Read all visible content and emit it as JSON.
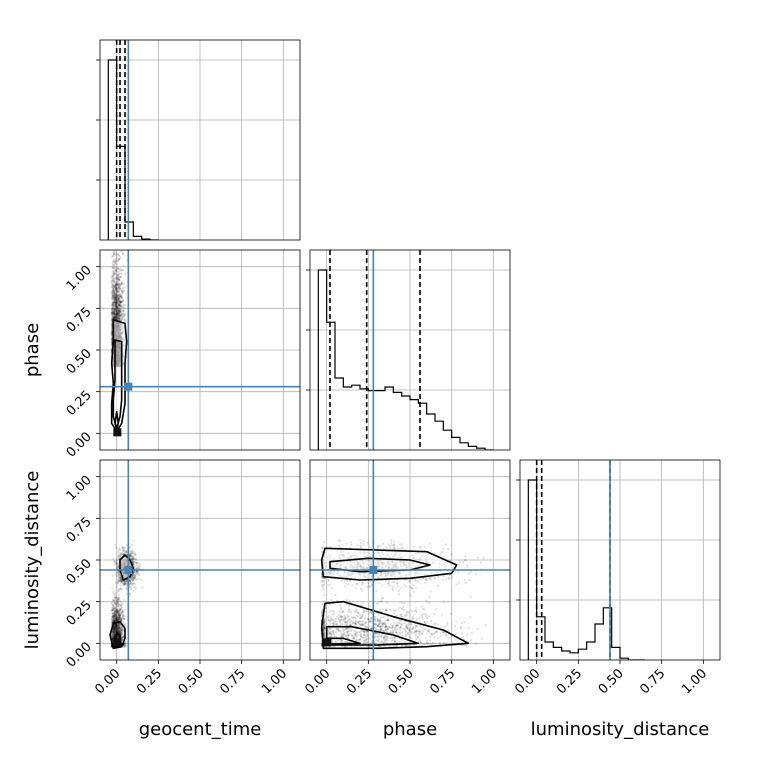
{
  "chart_data": {
    "type": "corner",
    "parameters": [
      "geocent_time",
      "phase",
      "luminosity_distance"
    ],
    "axis_range": [
      -0.1,
      1.1
    ],
    "ticks": [
      0.0,
      0.25,
      0.5,
      0.75,
      1.0
    ],
    "tick_labels": [
      "0.00",
      "0.25",
      "0.50",
      "0.75",
      "1.00"
    ],
    "grid": true,
    "truth_color": "#4682b4",
    "truths": {
      "geocent_time": 0.07,
      "phase": 0.28,
      "luminosity_distance": 0.44
    },
    "marginals": [
      {
        "name": "geocent_time",
        "bin_edges": [
          -0.05,
          0.0,
          0.05,
          0.1,
          0.15,
          0.2,
          0.25
        ],
        "counts": [
          1.0,
          0.52,
          0.1,
          0.02,
          0.005,
          0.0
        ],
        "quantiles": [
          0.0,
          0.02,
          0.05
        ]
      },
      {
        "name": "phase",
        "bin_edges": [
          -0.05,
          0.0,
          0.05,
          0.1,
          0.15,
          0.2,
          0.25,
          0.3,
          0.35,
          0.4,
          0.45,
          0.5,
          0.55,
          0.6,
          0.65,
          0.7,
          0.75,
          0.8,
          0.85,
          0.9,
          0.95,
          1.0
        ],
        "counts": [
          1.0,
          0.71,
          0.4,
          0.35,
          0.36,
          0.34,
          0.33,
          0.33,
          0.35,
          0.32,
          0.3,
          0.28,
          0.26,
          0.2,
          0.16,
          0.11,
          0.07,
          0.04,
          0.02,
          0.01,
          0.0
        ],
        "quantiles": [
          0.02,
          0.24,
          0.56
        ]
      },
      {
        "name": "luminosity_distance",
        "bin_edges": [
          -0.05,
          0.0,
          0.05,
          0.1,
          0.15,
          0.2,
          0.25,
          0.3,
          0.35,
          0.4,
          0.45,
          0.5,
          0.55,
          0.6,
          0.65
        ],
        "counts": [
          1.0,
          0.24,
          0.1,
          0.07,
          0.05,
          0.04,
          0.06,
          0.1,
          0.2,
          0.29,
          0.07,
          0.01,
          0.0,
          0.0
        ],
        "quantiles": [
          0.0,
          0.03,
          0.44
        ]
      }
    ],
    "pairs": [
      {
        "x": "geocent_time",
        "y": "phase",
        "clusters": [
          {
            "center": [
              0.0,
              0.4
            ],
            "spread": [
              0.02,
              0.28
            ],
            "weight": 1.0
          }
        ],
        "contours": [
          [
            [
              0.0,
              0.01
            ],
            [
              0.03,
              0.06
            ],
            [
              0.05,
              0.18
            ],
            [
              0.05,
              0.3
            ],
            [
              0.05,
              0.42
            ],
            [
              0.06,
              0.55
            ],
            [
              0.05,
              0.66
            ],
            [
              -0.02,
              0.68
            ],
            [
              -0.02,
              0.55
            ],
            [
              -0.03,
              0.42
            ],
            [
              -0.02,
              0.3
            ],
            [
              -0.03,
              0.18
            ],
            [
              -0.03,
              0.06
            ]
          ],
          [
            [
              0.0,
              0.03
            ],
            [
              0.02,
              0.1
            ],
            [
              0.03,
              0.2
            ],
            [
              0.03,
              0.32
            ],
            [
              0.03,
              0.44
            ],
            [
              0.03,
              0.55
            ],
            [
              -0.01,
              0.56
            ],
            [
              -0.01,
              0.44
            ],
            [
              -0.01,
              0.32
            ],
            [
              -0.02,
              0.2
            ],
            [
              -0.02,
              0.1
            ]
          ],
          [
            [
              0.0,
              0.02
            ],
            [
              0.01,
              0.06
            ],
            [
              0.0,
              0.13
            ],
            [
              -0.01,
              0.06
            ]
          ]
        ]
      },
      {
        "x": "geocent_time",
        "y": "luminosity_distance",
        "clusters": [
          {
            "center": [
              0.0,
              0.05
            ],
            "spread": [
              0.02,
              0.1
            ],
            "weight": 0.6
          },
          {
            "center": [
              0.06,
              0.45
            ],
            "spread": [
              0.03,
              0.05
            ],
            "weight": 0.4
          }
        ],
        "contours": [
          [
            [
              0.04,
              0.38
            ],
            [
              0.08,
              0.4
            ],
            [
              0.1,
              0.45
            ],
            [
              0.08,
              0.5
            ],
            [
              0.05,
              0.53
            ],
            [
              0.02,
              0.5
            ],
            [
              0.02,
              0.44
            ]
          ],
          [
            [
              -0.02,
              -0.03
            ],
            [
              0.03,
              -0.02
            ],
            [
              0.05,
              0.03
            ],
            [
              0.05,
              0.09
            ],
            [
              0.02,
              0.13
            ],
            [
              -0.02,
              0.12
            ],
            [
              -0.04,
              0.05
            ]
          ],
          [
            [
              0.0,
              0.0
            ],
            [
              0.02,
              0.02
            ],
            [
              0.02,
              0.05
            ],
            [
              0.0,
              0.06
            ],
            [
              -0.01,
              0.03
            ]
          ]
        ]
      },
      {
        "x": "phase",
        "y": "luminosity_distance",
        "clusters": [
          {
            "center": [
              0.3,
              0.46
            ],
            "spread": [
              0.22,
              0.06
            ],
            "weight": 0.5
          },
          {
            "center": [
              0.25,
              0.08
            ],
            "spread": [
              0.25,
              0.07
            ],
            "weight": 0.5
          }
        ],
        "contours": [
          [
            [
              -0.02,
              0.4
            ],
            [
              0.2,
              0.38
            ],
            [
              0.5,
              0.39
            ],
            [
              0.75,
              0.42
            ],
            [
              0.78,
              0.47
            ],
            [
              0.6,
              0.55
            ],
            [
              0.3,
              0.56
            ],
            [
              -0.01,
              0.57
            ],
            [
              -0.03,
              0.5
            ]
          ],
          [
            [
              0.02,
              0.45
            ],
            [
              0.2,
              0.43
            ],
            [
              0.5,
              0.44
            ],
            [
              0.62,
              0.47
            ],
            [
              0.5,
              0.5
            ],
            [
              0.25,
              0.51
            ],
            [
              0.02,
              0.49
            ]
          ],
          [
            [
              -0.02,
              -0.03
            ],
            [
              0.3,
              -0.03
            ],
            [
              0.6,
              -0.02
            ],
            [
              0.85,
              0.0
            ],
            [
              0.7,
              0.08
            ],
            [
              0.4,
              0.16
            ],
            [
              0.1,
              0.25
            ],
            [
              -0.01,
              0.24
            ],
            [
              -0.03,
              0.1
            ]
          ],
          [
            [
              0.0,
              -0.01
            ],
            [
              0.3,
              -0.01
            ],
            [
              0.55,
              0.0
            ],
            [
              0.4,
              0.05
            ],
            [
              0.15,
              0.1
            ],
            [
              0.0,
              0.1
            ]
          ],
          [
            [
              0.0,
              -0.005
            ],
            [
              0.2,
              0.0
            ],
            [
              0.1,
              0.03
            ],
            [
              0.0,
              0.03
            ]
          ]
        ]
      }
    ]
  }
}
